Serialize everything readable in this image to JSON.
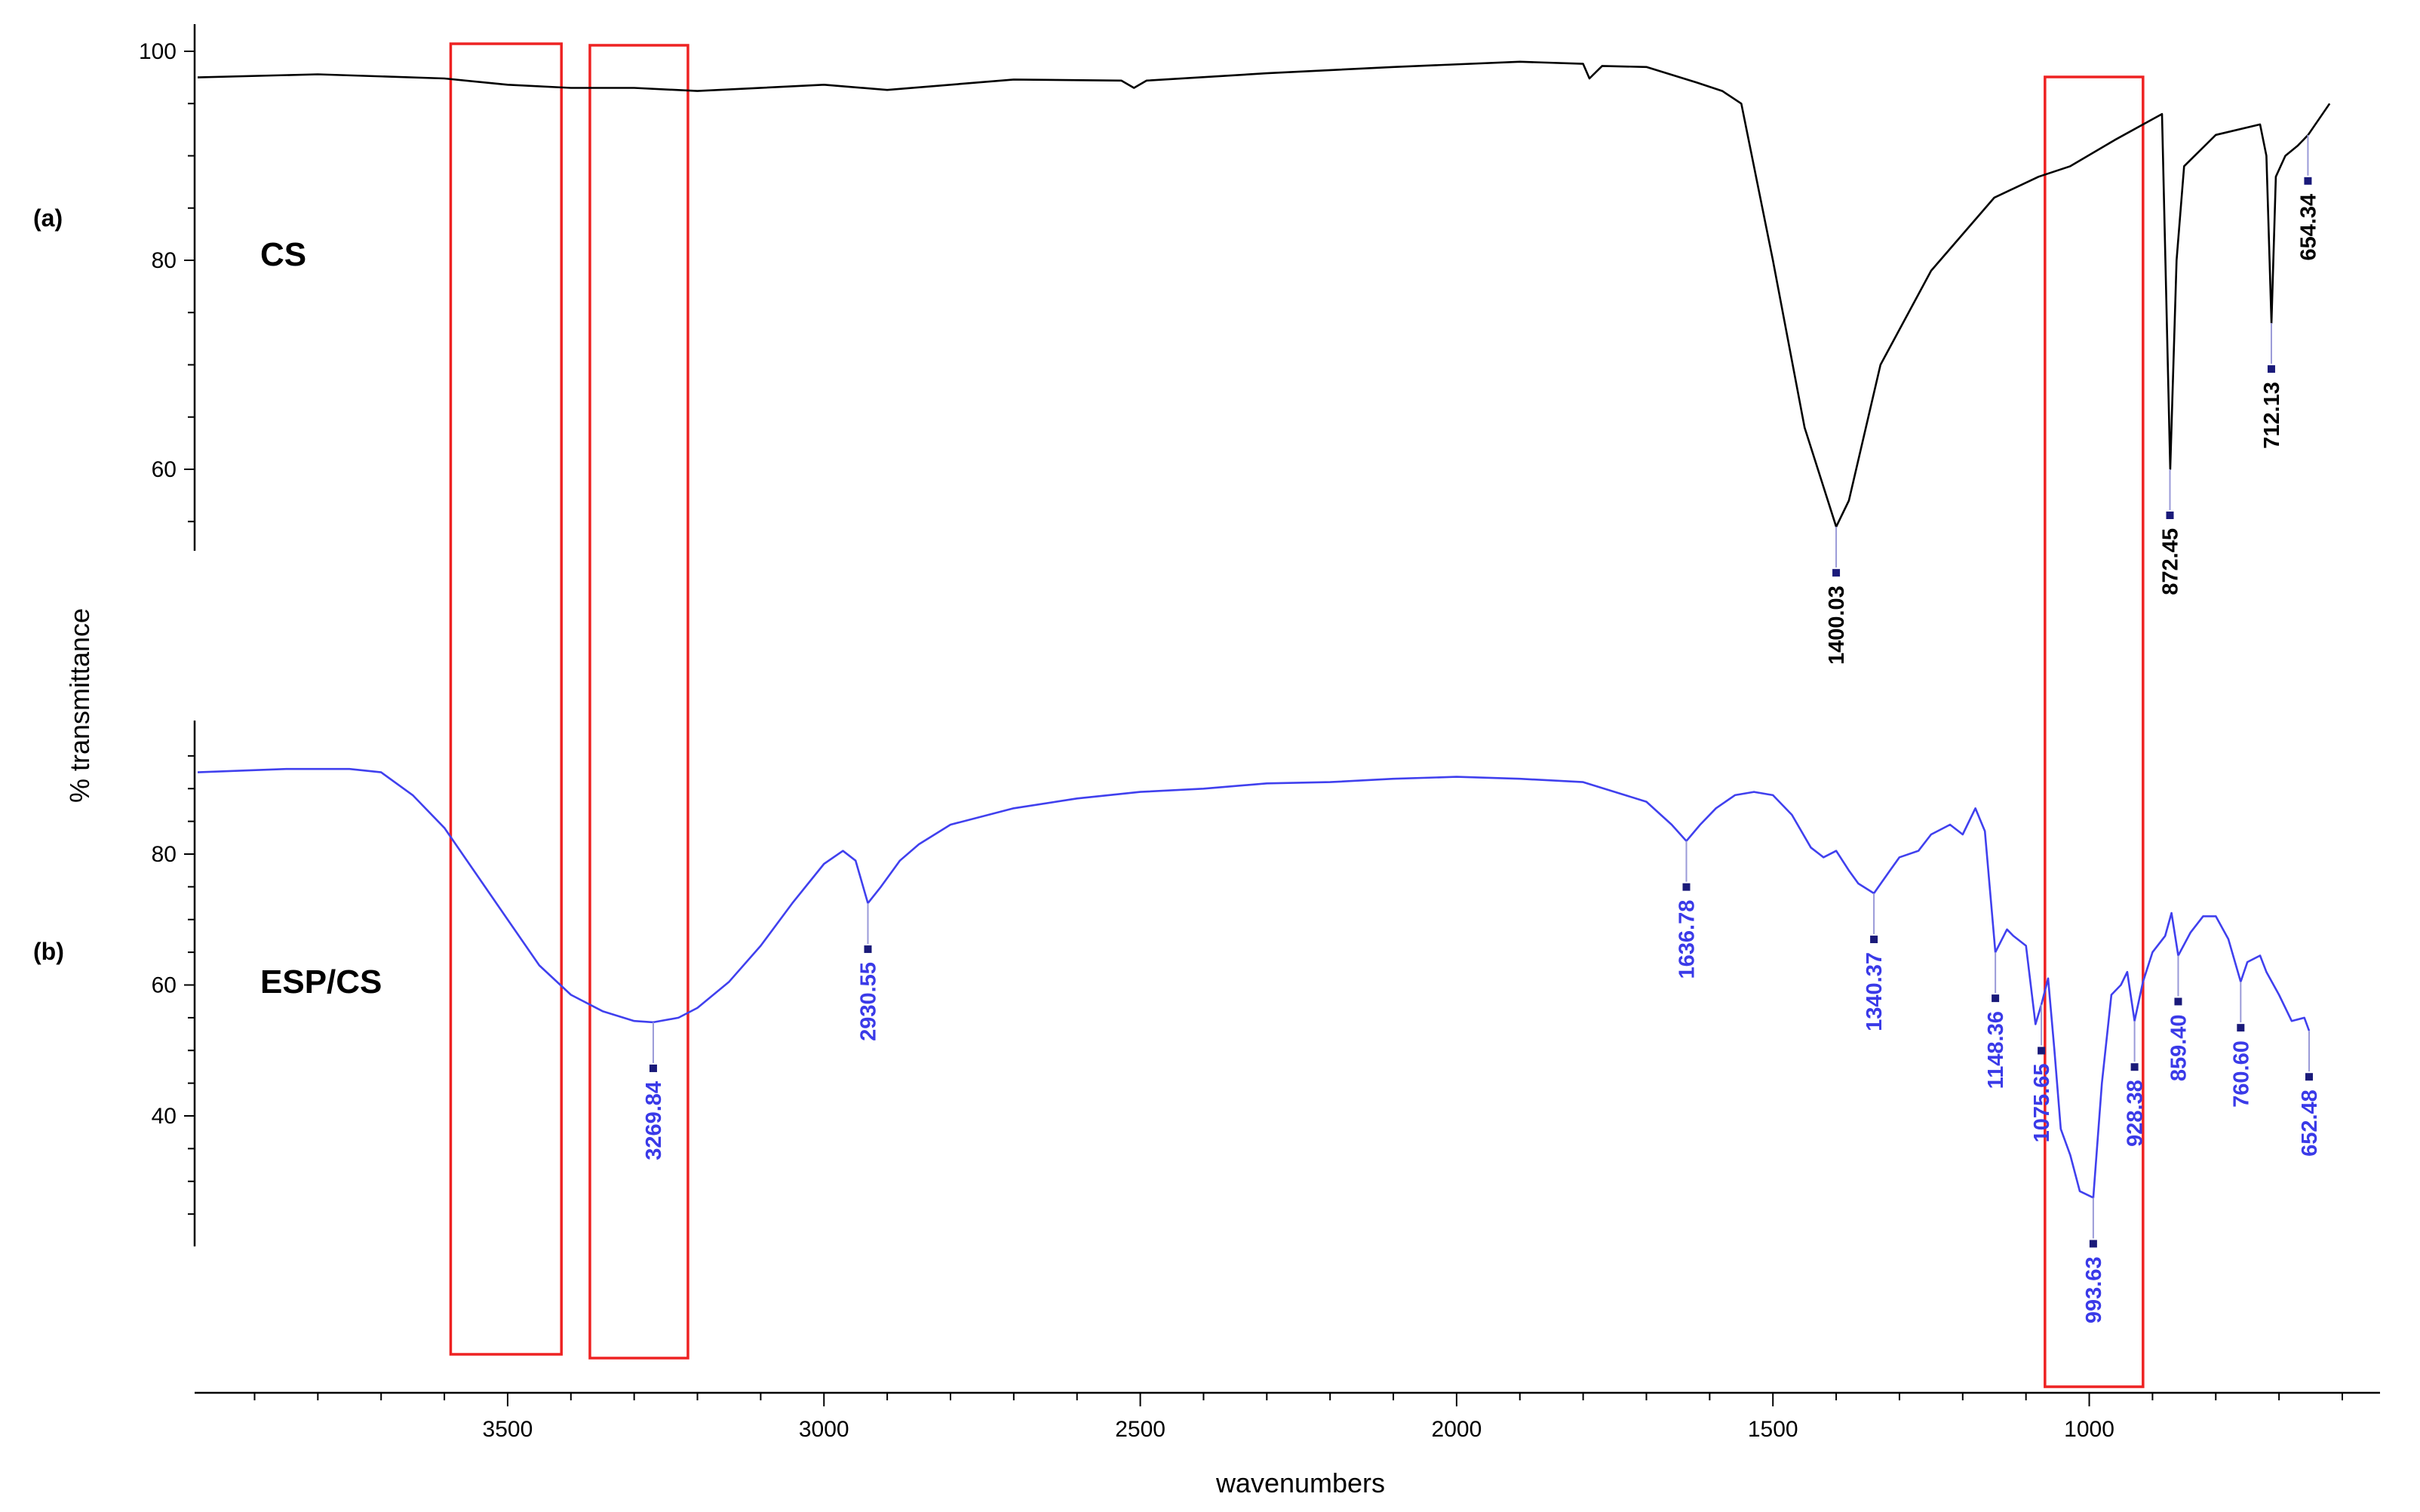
{
  "chart_data": {
    "type": "line",
    "xlabel": "wavenumbers",
    "ylabel": "% transmittance",
    "x_reversed": true,
    "xlim": [
      3990,
      600
    ],
    "x_ticks": [
      3500,
      3000,
      2500,
      2000,
      1500,
      1000
    ],
    "x_tick_labels": [
      "3500",
      "3000",
      "2500",
      "2000",
      "1500",
      "1000"
    ],
    "grid": false,
    "legend": "none",
    "panels": [
      {
        "id": "a",
        "panel_label": "(a)",
        "sample_label": "CS",
        "color": "#000000",
        "label_color": "#000000",
        "ylim": [
          52,
          102.5
        ],
        "y_ticks": [
          100,
          80,
          60
        ],
        "y_tick_labels": [
          "100",
          "80",
          "60"
        ],
        "x": [
          3990,
          3800,
          3600,
          3500,
          3400,
          3300,
          3200,
          3000,
          2900,
          2700,
          2530,
          2510,
          2490,
          2300,
          2100,
          1900,
          1800,
          1790,
          1770,
          1700,
          1620,
          1580,
          1550,
          1500,
          1450,
          1400,
          1380,
          1330,
          1250,
          1150,
          1080,
          1030,
          960,
          900,
          885,
          872,
          862,
          850,
          800,
          730,
          720,
          712,
          705,
          690,
          670,
          654,
          620
        ],
        "y": [
          97.5,
          97.8,
          97.4,
          96.8,
          96.5,
          96.5,
          96.2,
          96.8,
          96.3,
          97.3,
          97.2,
          96.5,
          97.2,
          97.9,
          98.5,
          99,
          98.8,
          97.4,
          98.6,
          98.5,
          97,
          96.2,
          95,
          80,
          64,
          54.5,
          57,
          70,
          79,
          86,
          88,
          89,
          91.5,
          93.5,
          94,
          60,
          80,
          89,
          92,
          93,
          90,
          74,
          88,
          90,
          91,
          92,
          95
        ],
        "peak_labels": [
          {
            "x": 1400.03,
            "y": 54.5,
            "label": "1400.03"
          },
          {
            "x": 872.45,
            "y": 60.0,
            "label": "872.45"
          },
          {
            "x": 712.13,
            "y": 74.0,
            "label": "712.13"
          },
          {
            "x": 654.34,
            "y": 92.0,
            "label": "654.34"
          }
        ]
      },
      {
        "id": "b",
        "panel_label": "(b)",
        "sample_label": "ESP/CS",
        "color": "#4040ee",
        "label_color": "#3a3ae8",
        "ylim": [
          20,
          100
        ],
        "y_ticks": [
          80,
          60,
          40
        ],
        "y_tick_labels": [
          "80",
          "60",
          "40"
        ],
        "x": [
          3990,
          3850,
          3750,
          3700,
          3650,
          3600,
          3550,
          3500,
          3450,
          3400,
          3350,
          3300,
          3269.84,
          3230,
          3200,
          3150,
          3100,
          3050,
          3000,
          2970,
          2950,
          2930.55,
          2910,
          2880,
          2850,
          2800,
          2700,
          2600,
          2500,
          2400,
          2300,
          2200,
          2100,
          2000,
          1900,
          1800,
          1750,
          1700,
          1660,
          1636.78,
          1615,
          1590,
          1560,
          1530,
          1500,
          1470,
          1440,
          1420,
          1400,
          1380,
          1365,
          1340.37,
          1315,
          1300,
          1270,
          1250,
          1220,
          1200,
          1180,
          1165,
          1148.36,
          1130,
          1120,
          1100,
          1085,
          1075.65,
          1065,
          1055,
          1045,
          1030,
          1015,
          993.63,
          980,
          965,
          950,
          940,
          928.38,
          915,
          900,
          880,
          870,
          859.4,
          840,
          820,
          800,
          780,
          760.6,
          750,
          730,
          720,
          700,
          680,
          660,
          652.48
        ],
        "y": [
          92.5,
          93,
          93,
          92.5,
          89,
          84,
          77,
          70,
          63,
          58.5,
          56,
          54.5,
          54.3,
          55,
          56.5,
          60.5,
          66,
          72.5,
          78.5,
          80.5,
          79,
          72.5,
          75,
          79,
          81.5,
          84.5,
          87,
          88.5,
          89.5,
          90,
          90.8,
          91,
          91.5,
          91.8,
          91.5,
          91,
          89.5,
          88,
          84.5,
          82,
          84.5,
          87,
          89,
          89.5,
          89,
          86,
          81,
          79.5,
          80.5,
          77.5,
          75.5,
          74,
          77.5,
          79.5,
          80.5,
          83,
          84.5,
          83,
          87,
          83.5,
          65,
          68.5,
          67.5,
          66,
          54,
          57,
          61,
          50,
          38,
          34,
          28.5,
          27.5,
          45,
          58.5,
          60,
          62,
          54.5,
          60.5,
          65,
          67.5,
          71,
          64.5,
          68,
          70.5,
          70.5,
          67,
          60.5,
          63.5,
          64.5,
          62,
          58.5,
          54.5,
          55,
          53
        ],
        "peak_labels": [
          {
            "x": 3269.84,
            "y": 54.3,
            "label": "3269.84"
          },
          {
            "x": 2930.55,
            "y": 72.5,
            "label": "2930.55"
          },
          {
            "x": 1636.78,
            "y": 82.0,
            "label": "1636.78"
          },
          {
            "x": 1340.37,
            "y": 74.0,
            "label": "1340.37"
          },
          {
            "x": 1148.36,
            "y": 65.0,
            "label": "1148.36"
          },
          {
            "x": 1075.65,
            "y": 57.0,
            "label": "1075.65"
          },
          {
            "x": 993.63,
            "y": 27.5,
            "label": "993.63"
          },
          {
            "x": 928.38,
            "y": 54.5,
            "label": "928.38"
          },
          {
            "x": 859.4,
            "y": 64.5,
            "label": "859.40"
          },
          {
            "x": 760.6,
            "y": 60.5,
            "label": "760.60"
          },
          {
            "x": 652.48,
            "y": 53.0,
            "label": "652.48"
          }
        ]
      }
    ],
    "highlight_regions": [
      {
        "x_start": 3590,
        "x_end": 3415,
        "color": "#ee2222"
      },
      {
        "x_start": 3370,
        "x_end": 3215,
        "color": "#ee2222"
      },
      {
        "x_start": 1070,
        "x_end": 915,
        "color": "#ee2222"
      }
    ]
  }
}
